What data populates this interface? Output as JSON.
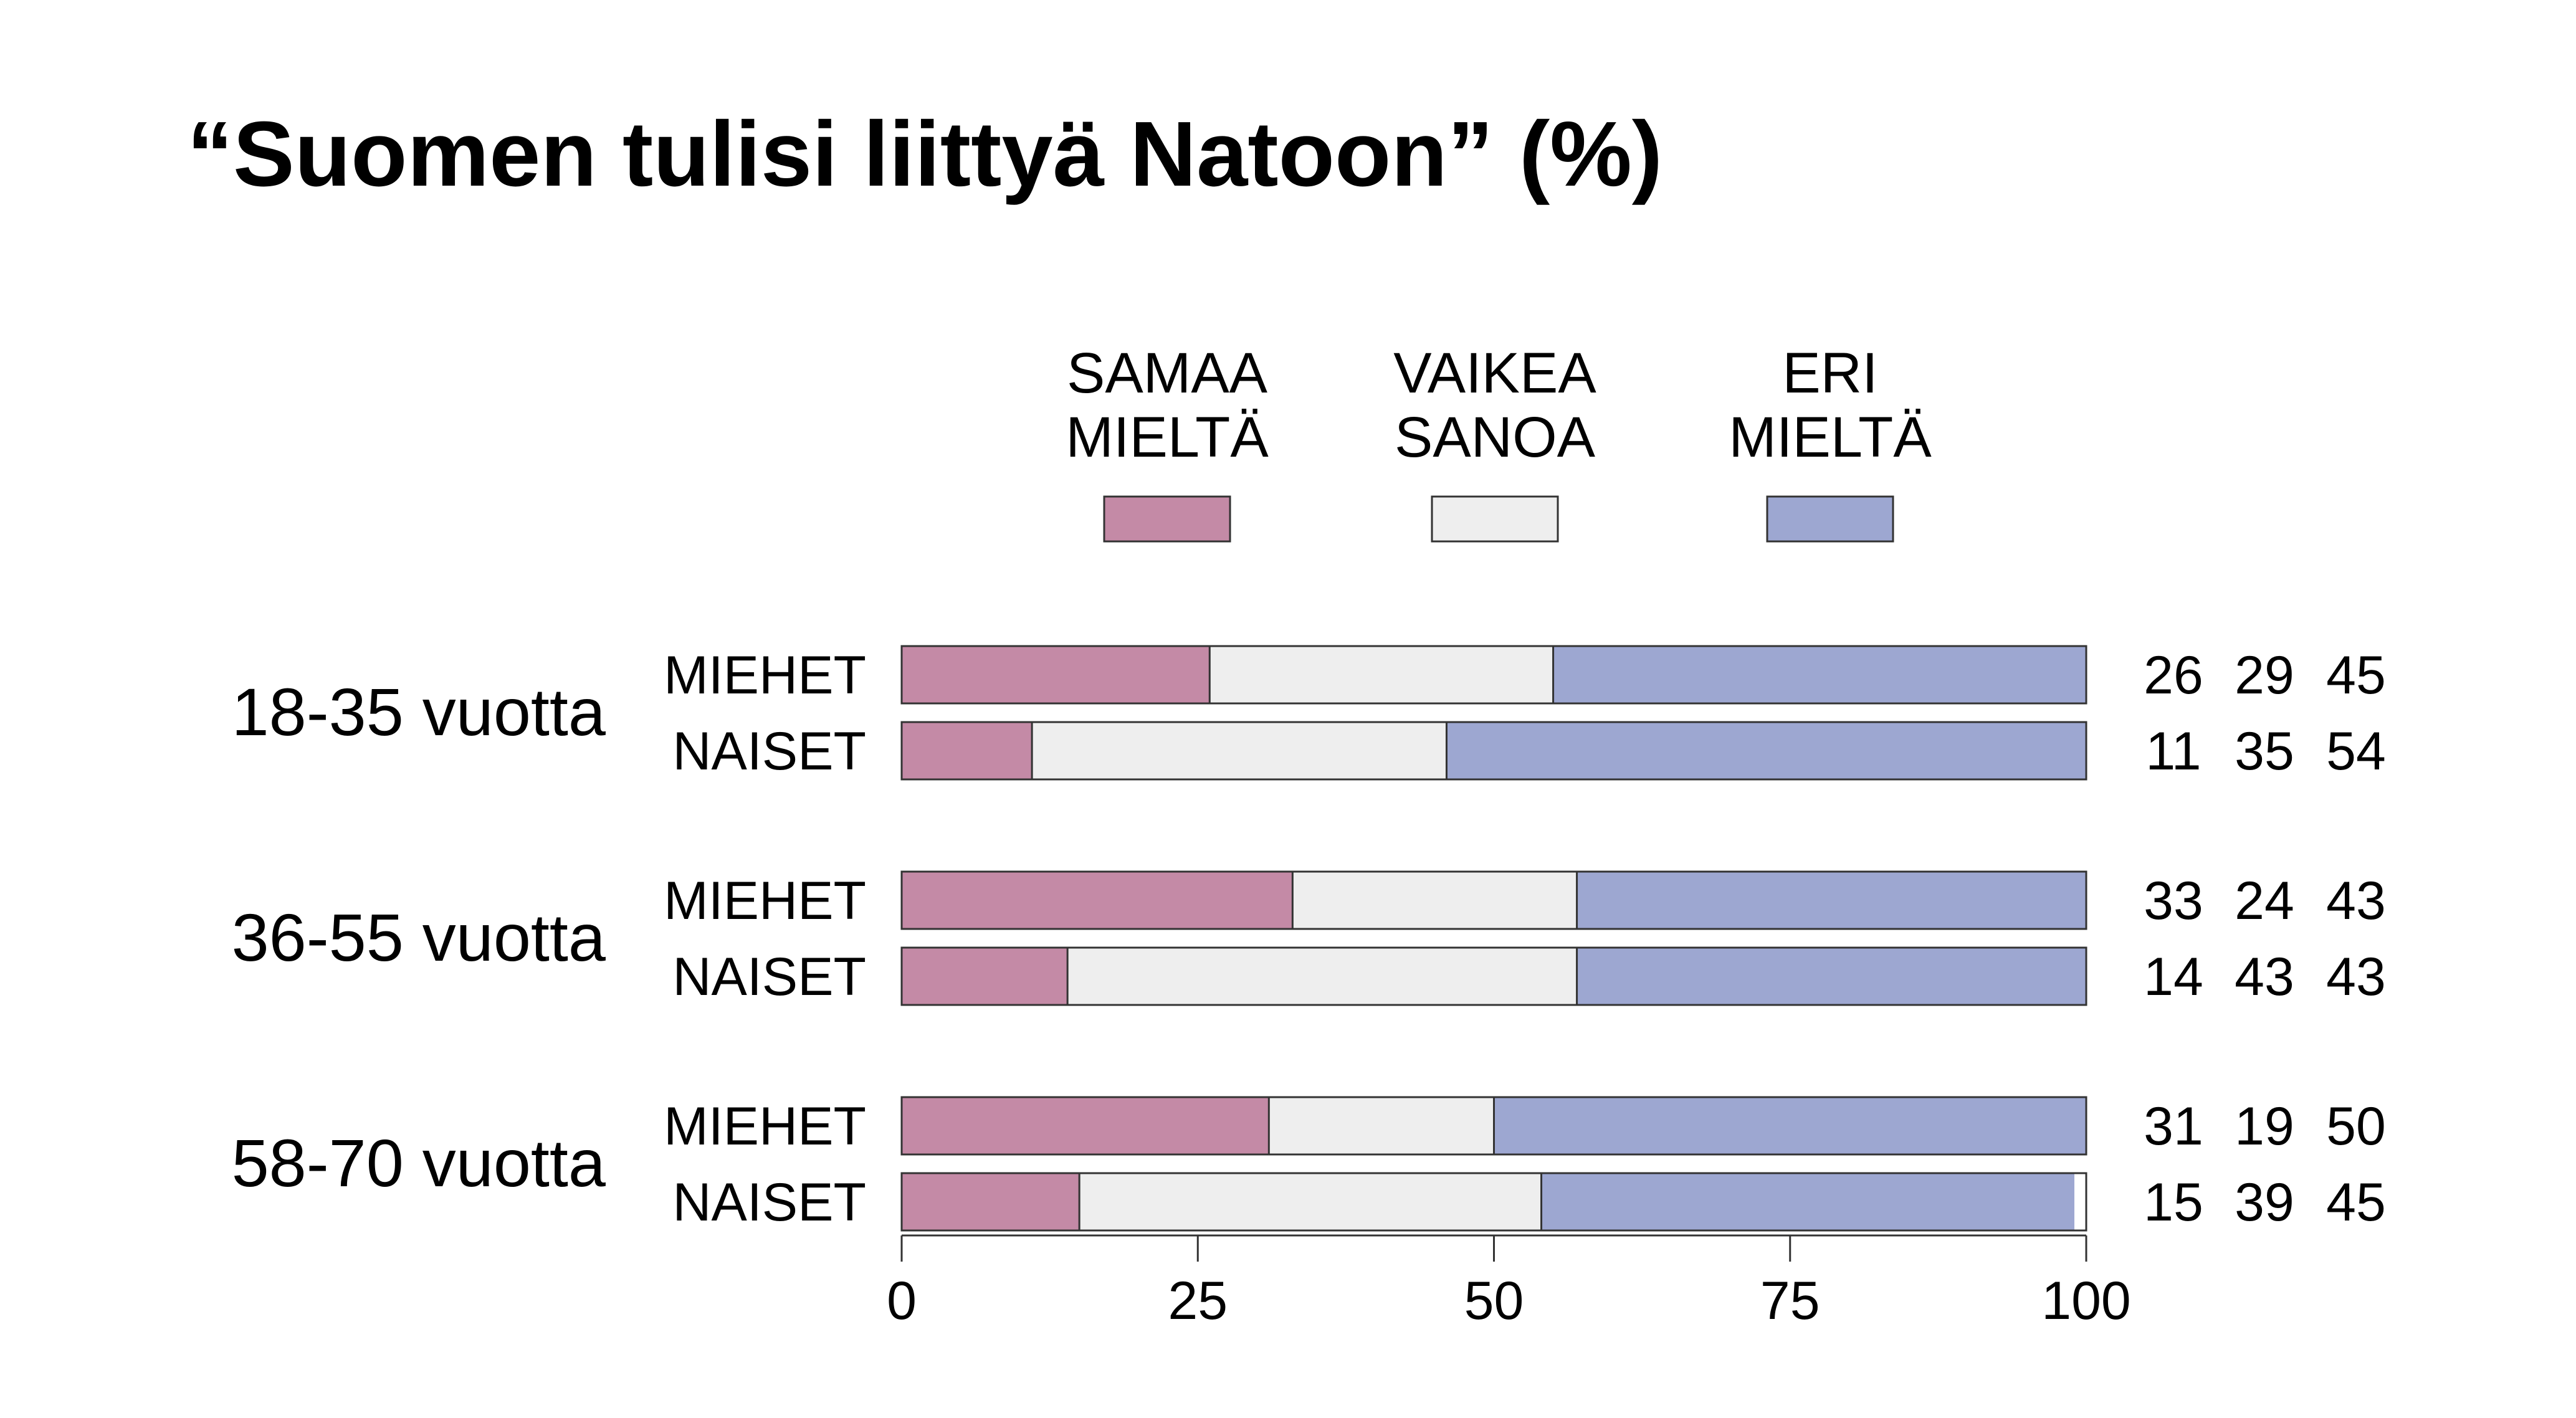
{
  "chart_data": {
    "type": "bar",
    "orientation": "horizontal",
    "stacked": true,
    "title": "“Suomen tulisi liittyä Natoon” (%)",
    "series": [
      {
        "name": "SAMAA MIELTÄ",
        "name_lines": [
          "SAMAA",
          "MIELTÄ"
        ],
        "color": "#c48aa6"
      },
      {
        "name": "VAIKEA SANOA",
        "name_lines": [
          "VAIKEA",
          "SANOA"
        ],
        "color": "#eeeeee"
      },
      {
        "name": "ERI MIELTÄ",
        "name_lines": [
          "ERI",
          "MIELTÄ"
        ],
        "color": "#9da7d1"
      }
    ],
    "groups": [
      {
        "label": "18-35 vuotta",
        "rows": [
          {
            "label": "MIEHET",
            "values": [
              26,
              29,
              45
            ]
          },
          {
            "label": "NAISET",
            "values": [
              11,
              35,
              54
            ]
          }
        ]
      },
      {
        "label": "36-55 vuotta",
        "rows": [
          {
            "label": "MIEHET",
            "values": [
              33,
              24,
              43
            ]
          },
          {
            "label": "NAISET",
            "values": [
              14,
              43,
              43
            ]
          }
        ]
      },
      {
        "label": "58-70 vuotta",
        "rows": [
          {
            "label": "MIEHET",
            "values": [
              31,
              19,
              50
            ]
          },
          {
            "label": "NAISET",
            "values": [
              15,
              39,
              45
            ]
          }
        ]
      }
    ],
    "xlim": [
      0,
      100
    ],
    "xticks": [
      0,
      25,
      50,
      75,
      100
    ],
    "grid": false,
    "legend_position": "top"
  }
}
